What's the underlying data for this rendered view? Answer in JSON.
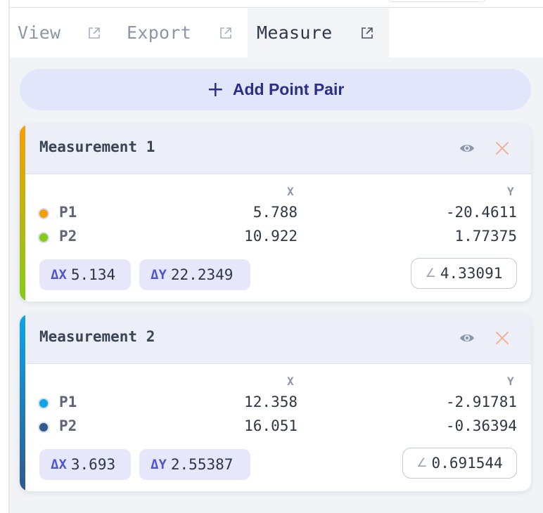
{
  "tabs": [
    {
      "label": "View",
      "icon": "external-link-icon"
    },
    {
      "label": "Export",
      "icon": "external-link-icon"
    },
    {
      "label": "Measure",
      "icon": "external-link-icon",
      "active": true
    }
  ],
  "add_button": {
    "icon": "plus-icon",
    "label": "Add Point Pair"
  },
  "columns": {
    "x": "X",
    "y": "Y"
  },
  "measurements": [
    {
      "title": "Measurement 1",
      "accent_gradient": [
        "#f59e0b",
        "#84cc16"
      ],
      "points": [
        {
          "label": "P1",
          "color": "#f59e0b",
          "x": "5.788",
          "y": "-20.4611"
        },
        {
          "label": "P2",
          "color": "#84cc16",
          "x": "10.922",
          "y": "1.77375"
        }
      ],
      "dx_label": "ΔX",
      "dx": "5.134",
      "dy_label": "ΔY",
      "dy": "22.2349",
      "angle_symbol": "∠",
      "angle": "4.33091"
    },
    {
      "title": "Measurement 2",
      "accent_gradient": [
        "#0ea5e9",
        "#2f5a8c"
      ],
      "points": [
        {
          "label": "P1",
          "color": "#0ea5e9",
          "x": "12.358",
          "y": "-2.91781"
        },
        {
          "label": "P2",
          "color": "#2f5a8c",
          "x": "16.051",
          "y": "-0.36394"
        }
      ],
      "dx_label": "ΔX",
      "dx": "3.693",
      "dy_label": "ΔY",
      "dy": "2.55387",
      "angle_symbol": "∠",
      "angle": "0.691544"
    }
  ],
  "colors": {
    "accent_text": "#2b2e8a",
    "add_button_bg": "#e1e6fb",
    "card_header_bg": "#eceef8",
    "delta_chip_bg": "#e6e7fb",
    "delta_key": "#4f56d1",
    "close_icon": "#f0b49c",
    "eye_icon": "#8a96aa"
  }
}
